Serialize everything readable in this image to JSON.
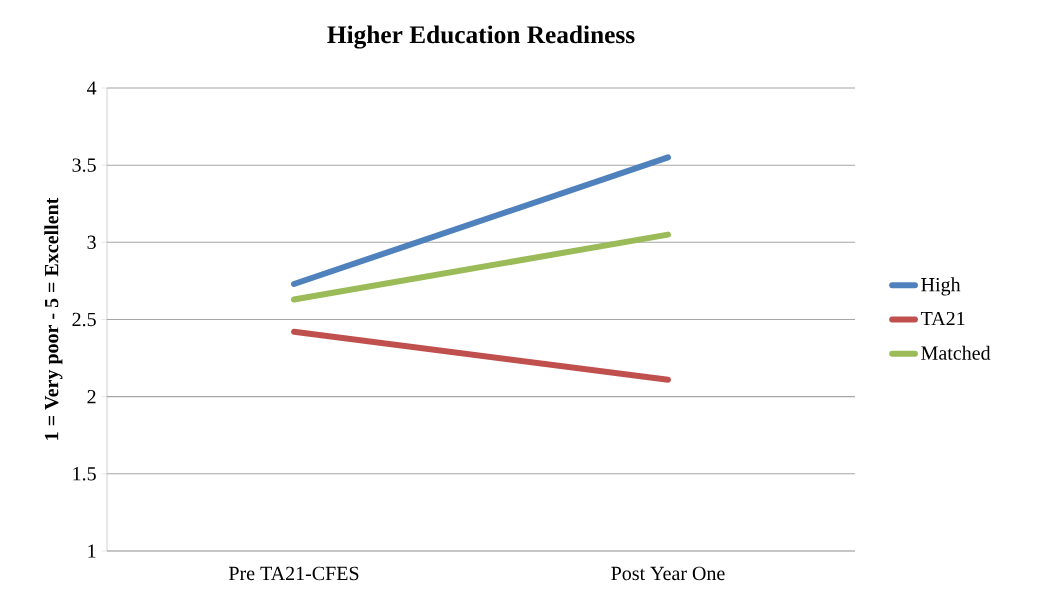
{
  "chart_data": {
    "type": "line",
    "title": "Higher Education Readiness",
    "ylabel": "1 = Very poor - 5 = Excellent",
    "categories": [
      "Pre TA21-CFES",
      "Post Year One"
    ],
    "series": [
      {
        "name": "High",
        "color": "#4f81bd",
        "values": [
          2.73,
          3.55
        ]
      },
      {
        "name": "TA21",
        "color": "#c0504d",
        "values": [
          2.42,
          2.11
        ]
      },
      {
        "name": "Matched",
        "color": "#9bbb59",
        "values": [
          2.63,
          3.05
        ]
      }
    ],
    "ylim": [
      1,
      4
    ],
    "yticks": [
      1,
      1.5,
      2,
      2.5,
      3,
      3.5,
      4
    ],
    "grid": "y",
    "legend": "right",
    "marker": "none",
    "line_style": "solid"
  }
}
